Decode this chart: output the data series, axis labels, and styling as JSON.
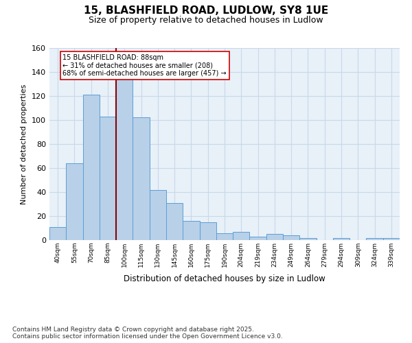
{
  "title1": "15, BLASHFIELD ROAD, LUDLOW, SY8 1UE",
  "title2": "Size of property relative to detached houses in Ludlow",
  "xlabel": "Distribution of detached houses by size in Ludlow",
  "ylabel": "Number of detached properties",
  "bar_labels": [
    "40sqm",
    "55sqm",
    "70sqm",
    "85sqm",
    "100sqm",
    "115sqm",
    "130sqm",
    "145sqm",
    "160sqm",
    "175sqm",
    "190sqm",
    "204sqm",
    "219sqm",
    "234sqm",
    "249sqm",
    "264sqm",
    "279sqm",
    "294sqm",
    "309sqm",
    "324sqm",
    "339sqm"
  ],
  "bar_values": [
    11,
    64,
    121,
    103,
    134,
    102,
    42,
    31,
    16,
    15,
    6,
    7,
    3,
    5,
    4,
    2,
    0,
    2,
    0,
    2,
    2
  ],
  "bar_color": "#b8d0e8",
  "bar_edge_color": "#5a9fd4",
  "annotation_line1": "15 BLASHFIELD ROAD: 88sqm",
  "annotation_line2": "← 31% of detached houses are smaller (208)",
  "annotation_line3": "68% of semi-detached houses are larger (457) →",
  "vline_x": 3.5,
  "vline_color": "#8b0000",
  "grid_color": "#c8d8ea",
  "bg_color": "#e8f0f8",
  "ylim": [
    0,
    160
  ],
  "yticks": [
    0,
    20,
    40,
    60,
    80,
    100,
    120,
    140,
    160
  ],
  "footer": "Contains HM Land Registry data © Crown copyright and database right 2025.\nContains public sector information licensed under the Open Government Licence v3.0."
}
